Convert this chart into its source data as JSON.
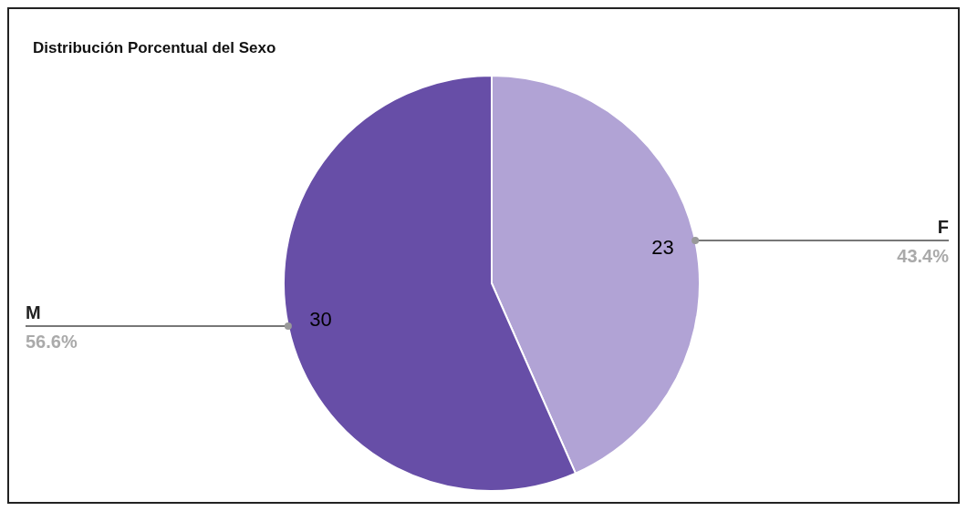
{
  "chart_data": {
    "type": "pie",
    "title": "Distribución Porcentual del Sexo",
    "categories": [
      "F",
      "M"
    ],
    "values": [
      23,
      30
    ],
    "colors": [
      "#b1a3d5",
      "#674ea7"
    ],
    "value_labels": [
      "23",
      "30"
    ],
    "annotations": [
      {
        "text": "43.4%",
        "x": "F"
      },
      {
        "text": "56.6%",
        "x": "M"
      }
    ]
  }
}
